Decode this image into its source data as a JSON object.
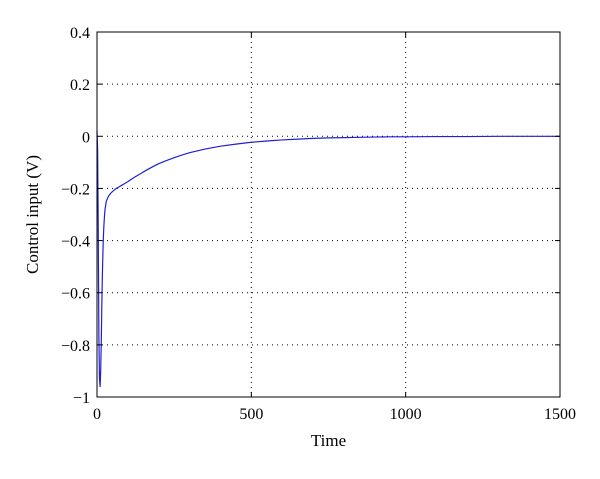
{
  "chart_data": {
    "type": "line",
    "title": "",
    "xlabel": "Time",
    "ylabel": "Control input (V)",
    "xlim": [
      0,
      1500
    ],
    "ylim": [
      -1,
      0.4
    ],
    "xticks": [
      0,
      500,
      1000,
      1500
    ],
    "yticks": [
      -1,
      -0.8,
      -0.6,
      -0.4,
      -0.2,
      0,
      0.2,
      0.4
    ],
    "xtick_labels": [
      "0",
      "500",
      "1000",
      "1500"
    ],
    "ytick_labels": [
      "−1",
      "−0.8",
      "−0.6",
      "−0.4",
      "−0.2",
      "0",
      "0.2",
      "0.4"
    ],
    "grid": true,
    "legend": "none",
    "series": [
      {
        "color": "#1f1fd6",
        "x": [
          0,
          2,
          4,
          6,
          8,
          10,
          12,
          14,
          16,
          18,
          20,
          22,
          24,
          26,
          28,
          30,
          35,
          40,
          45,
          50,
          60,
          70,
          80,
          90,
          100,
          120,
          140,
          160,
          180,
          200,
          225,
          250,
          275,
          300,
          350,
          400,
          450,
          500,
          550,
          600,
          650,
          700,
          750,
          800,
          850,
          900,
          950,
          1000,
          1100,
          1200,
          1300,
          1400,
          1500
        ],
        "y": [
          0.02,
          -0.05,
          -0.35,
          -0.75,
          -0.93,
          -0.96,
          -0.9,
          -0.78,
          -0.62,
          -0.5,
          -0.41,
          -0.35,
          -0.31,
          -0.28,
          -0.265,
          -0.25,
          -0.235,
          -0.225,
          -0.218,
          -0.212,
          -0.202,
          -0.195,
          -0.188,
          -0.181,
          -0.174,
          -0.158,
          -0.144,
          -0.13,
          -0.117,
          -0.105,
          -0.093,
          -0.082,
          -0.072,
          -0.063,
          -0.049,
          -0.038,
          -0.03,
          -0.023,
          -0.018,
          -0.014,
          -0.011,
          -0.008,
          -0.006,
          -0.005,
          -0.004,
          -0.003,
          -0.002,
          -0.002,
          -0.001,
          -0.001,
          0.0,
          0.0,
          0.0
        ]
      }
    ]
  }
}
